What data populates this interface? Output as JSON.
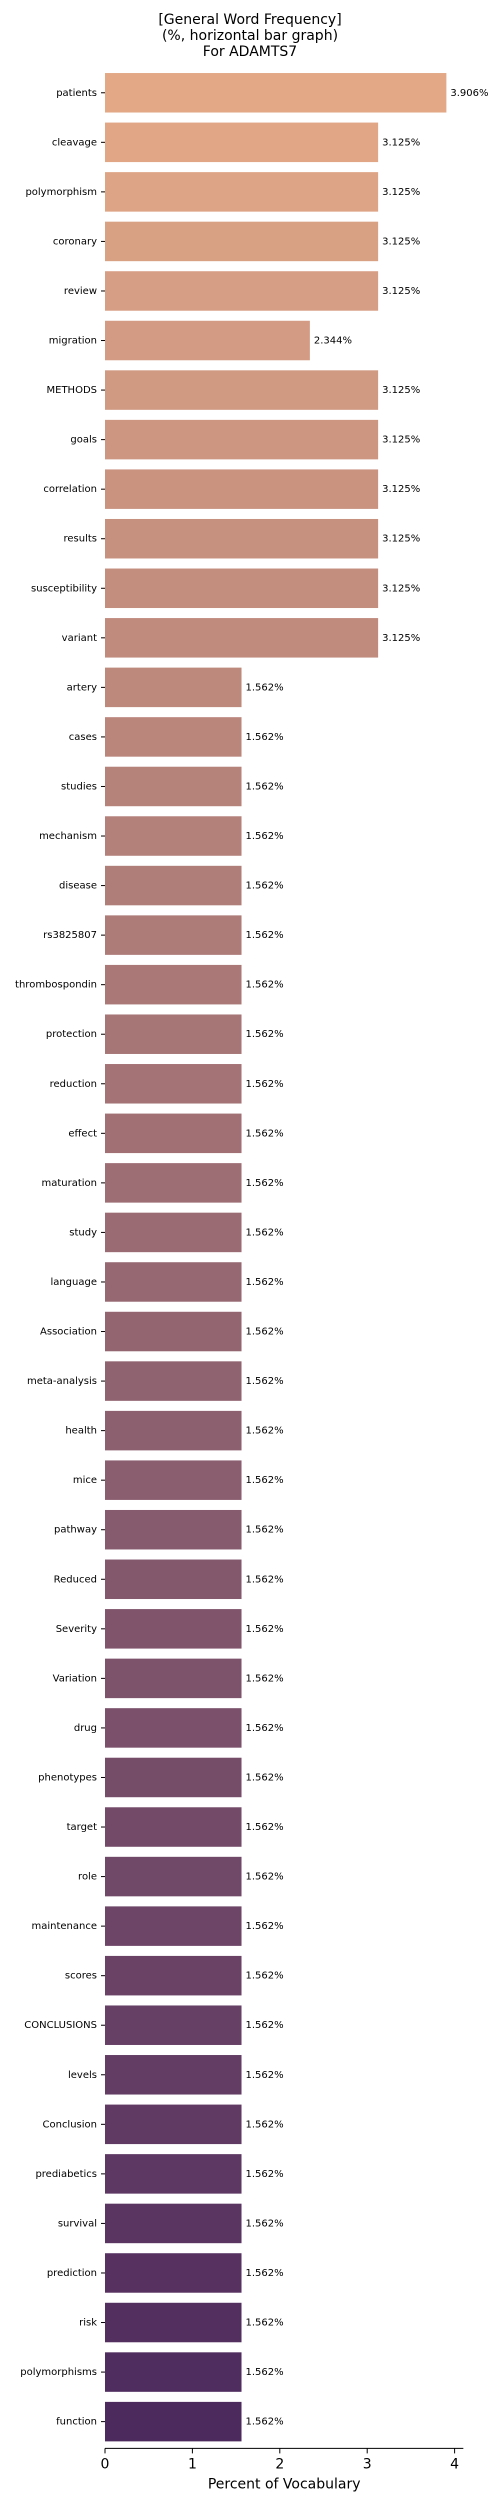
{
  "chart_data": {
    "type": "bar",
    "orientation": "horizontal",
    "title_lines": [
      "[General Word Frequency]",
      "(%, horizontal bar graph)",
      "For ADAMTS7"
    ],
    "xlabel": "Percent of Vocabulary",
    "ylabel": "",
    "xlim": [
      0,
      4.1
    ],
    "xticks": [
      0,
      1,
      2,
      3,
      4
    ],
    "grid": false,
    "categories": [
      "patients",
      "cleavage",
      "polymorphism",
      "coronary",
      "review",
      "migration",
      "METHODS",
      "goals",
      "correlation",
      "results",
      "susceptibility",
      "variant",
      "artery",
      "cases",
      "studies",
      "mechanism",
      "disease",
      "rs3825807",
      "thrombospondin",
      "protection",
      "reduction",
      "effect",
      "maturation",
      "study",
      "language",
      "Association",
      "meta-analysis",
      "health",
      "mice",
      "pathway",
      "Reduced",
      "Severity",
      "Variation",
      "drug",
      "phenotypes",
      "target",
      "role",
      "maintenance",
      "scores",
      "CONCLUSIONS",
      "levels",
      "Conclusion",
      "prediabetics",
      "survival",
      "prediction",
      "risk",
      "polymorphisms",
      "function"
    ],
    "values": [
      3.906,
      3.125,
      3.125,
      3.125,
      3.125,
      2.344,
      3.125,
      3.125,
      3.125,
      3.125,
      3.125,
      3.125,
      1.562,
      1.562,
      1.562,
      1.562,
      1.562,
      1.562,
      1.562,
      1.562,
      1.562,
      1.562,
      1.562,
      1.562,
      1.562,
      1.562,
      1.562,
      1.562,
      1.562,
      1.562,
      1.562,
      1.562,
      1.562,
      1.562,
      1.562,
      1.562,
      1.562,
      1.562,
      1.562,
      1.562,
      1.562,
      1.562,
      1.562,
      1.562,
      1.562,
      1.562,
      1.562,
      1.562
    ],
    "value_labels": [
      "3.906%",
      "3.125%",
      "3.125%",
      "3.125%",
      "3.125%",
      "2.344%",
      "3.125%",
      "3.125%",
      "3.125%",
      "3.125%",
      "3.125%",
      "3.125%",
      "1.562%",
      "1.562%",
      "1.562%",
      "1.562%",
      "1.562%",
      "1.562%",
      "1.562%",
      "1.562%",
      "1.562%",
      "1.562%",
      "1.562%",
      "1.562%",
      "1.562%",
      "1.562%",
      "1.562%",
      "1.562%",
      "1.562%",
      "1.562%",
      "1.562%",
      "1.562%",
      "1.562%",
      "1.562%",
      "1.562%",
      "1.562%",
      "1.562%",
      "1.562%",
      "1.562%",
      "1.562%",
      "1.562%",
      "1.562%",
      "1.562%",
      "1.562%",
      "1.562%",
      "1.562%",
      "1.562%",
      "1.562%"
    ],
    "palette": {
      "name": "flare",
      "start": "#e3a987",
      "end": "#4d2a5e"
    }
  }
}
